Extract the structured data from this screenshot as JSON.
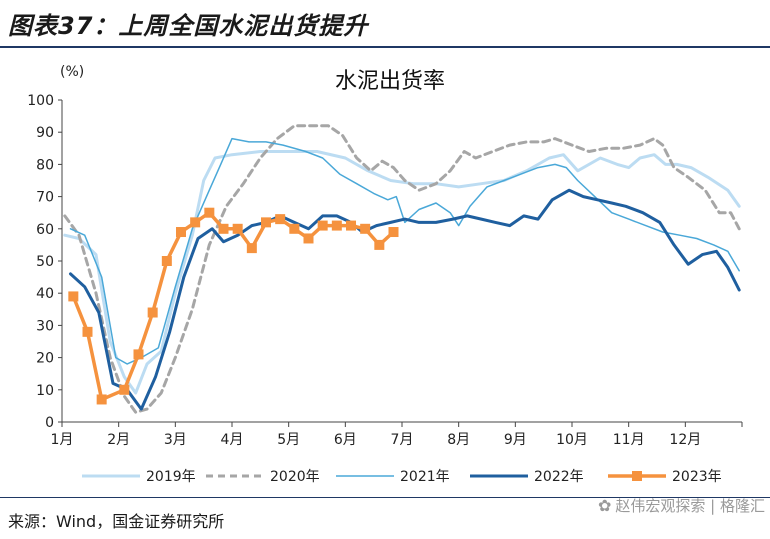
{
  "figure": {
    "title": "图表37：上周全国水泥出货提升",
    "source": "来源：Wind，国金证券研究所",
    "watermark": "赵伟宏观探索 | 格隆汇"
  },
  "chart_data": {
    "type": "line",
    "title": "水泥出货率",
    "unit": "(%)",
    "xlabel": "",
    "ylabel": "",
    "x_ticks": [
      "1月",
      "2月",
      "3月",
      "4月",
      "5月",
      "6月",
      "7月",
      "8月",
      "9月",
      "10月",
      "11月",
      "12月"
    ],
    "xlim": [
      1,
      13
    ],
    "ylim": [
      0,
      100
    ],
    "y_ticks": [
      0,
      10,
      20,
      30,
      40,
      50,
      60,
      70,
      80,
      90,
      100
    ],
    "grid": false,
    "legend_position": "bottom",
    "series": [
      {
        "name": "2019年",
        "color": "#bcdcf2",
        "style": "solid",
        "width": 3,
        "marker": "none",
        "points": [
          [
            1.05,
            58
          ],
          [
            1.3,
            57
          ],
          [
            1.6,
            52
          ],
          [
            1.85,
            25
          ],
          [
            2.1,
            14
          ],
          [
            2.3,
            9
          ],
          [
            2.5,
            18
          ],
          [
            2.75,
            22
          ],
          [
            3.0,
            40
          ],
          [
            3.3,
            58
          ],
          [
            3.5,
            75
          ],
          [
            3.7,
            82
          ],
          [
            4.0,
            83
          ],
          [
            4.5,
            84
          ],
          [
            5.0,
            84
          ],
          [
            5.5,
            84
          ],
          [
            6.0,
            82
          ],
          [
            6.4,
            78
          ],
          [
            6.8,
            75
          ],
          [
            7.2,
            74
          ],
          [
            7.6,
            74
          ],
          [
            8.0,
            73
          ],
          [
            8.4,
            74
          ],
          [
            8.8,
            75
          ],
          [
            9.2,
            78
          ],
          [
            9.6,
            82
          ],
          [
            9.85,
            83
          ],
          [
            10.1,
            78
          ],
          [
            10.5,
            82
          ],
          [
            10.8,
            80
          ],
          [
            11.0,
            79
          ],
          [
            11.2,
            82
          ],
          [
            11.45,
            83
          ],
          [
            11.65,
            80
          ],
          [
            11.85,
            80
          ],
          [
            12.1,
            79
          ],
          [
            12.4,
            76
          ],
          [
            12.75,
            72
          ],
          [
            12.95,
            67
          ]
        ]
      },
      {
        "name": "2020年",
        "color": "#a6a6a6",
        "style": "dashed",
        "width": 3,
        "marker": "none",
        "points": [
          [
            1.05,
            64
          ],
          [
            1.3,
            58
          ],
          [
            1.6,
            40
          ],
          [
            1.85,
            20
          ],
          [
            2.1,
            8
          ],
          [
            2.3,
            3
          ],
          [
            2.5,
            4
          ],
          [
            2.75,
            9
          ],
          [
            3.0,
            20
          ],
          [
            3.3,
            35
          ],
          [
            3.6,
            55
          ],
          [
            3.9,
            67
          ],
          [
            4.2,
            74
          ],
          [
            4.5,
            82
          ],
          [
            4.8,
            88
          ],
          [
            5.1,
            92
          ],
          [
            5.4,
            92
          ],
          [
            5.7,
            92
          ],
          [
            5.95,
            89
          ],
          [
            6.2,
            82
          ],
          [
            6.45,
            78
          ],
          [
            6.65,
            81
          ],
          [
            6.85,
            79
          ],
          [
            7.05,
            75
          ],
          [
            7.3,
            72
          ],
          [
            7.6,
            74
          ],
          [
            7.85,
            78
          ],
          [
            8.1,
            84
          ],
          [
            8.3,
            82
          ],
          [
            8.6,
            84
          ],
          [
            8.9,
            86
          ],
          [
            9.2,
            87
          ],
          [
            9.5,
            87
          ],
          [
            9.7,
            88
          ],
          [
            10.0,
            86
          ],
          [
            10.3,
            84
          ],
          [
            10.6,
            85
          ],
          [
            10.9,
            85
          ],
          [
            11.2,
            86
          ],
          [
            11.45,
            88
          ],
          [
            11.6,
            86
          ],
          [
            11.8,
            79
          ],
          [
            12.05,
            76
          ],
          [
            12.35,
            72
          ],
          [
            12.6,
            65
          ],
          [
            12.8,
            65
          ],
          [
            12.95,
            60
          ]
        ]
      },
      {
        "name": "2021年",
        "color": "#4aa8d8",
        "style": "solid",
        "width": 1.5,
        "marker": "none",
        "points": [
          [
            1.15,
            60
          ],
          [
            1.4,
            58
          ],
          [
            1.7,
            45
          ],
          [
            1.95,
            20
          ],
          [
            2.15,
            18
          ],
          [
            2.4,
            20
          ],
          [
            2.7,
            23
          ],
          [
            3.0,
            42
          ],
          [
            3.3,
            60
          ],
          [
            3.6,
            72
          ],
          [
            3.8,
            80
          ],
          [
            4.0,
            88
          ],
          [
            4.3,
            87
          ],
          [
            4.6,
            87
          ],
          [
            4.9,
            86
          ],
          [
            5.3,
            84
          ],
          [
            5.6,
            82
          ],
          [
            5.9,
            77
          ],
          [
            6.2,
            74
          ],
          [
            6.5,
            71
          ],
          [
            6.75,
            69
          ],
          [
            6.9,
            70
          ],
          [
            7.05,
            62
          ],
          [
            7.3,
            66
          ],
          [
            7.6,
            68
          ],
          [
            7.85,
            65
          ],
          [
            8.0,
            61
          ],
          [
            8.2,
            67
          ],
          [
            8.5,
            73
          ],
          [
            8.8,
            75
          ],
          [
            9.1,
            77
          ],
          [
            9.4,
            79
          ],
          [
            9.7,
            80
          ],
          [
            9.9,
            79
          ],
          [
            10.1,
            75
          ],
          [
            10.4,
            70
          ],
          [
            10.7,
            65
          ],
          [
            11.0,
            63
          ],
          [
            11.3,
            61
          ],
          [
            11.6,
            59
          ],
          [
            11.9,
            58
          ],
          [
            12.2,
            57
          ],
          [
            12.5,
            55
          ],
          [
            12.75,
            53
          ],
          [
            12.95,
            47
          ]
        ]
      },
      {
        "name": "2022年",
        "color": "#1f5f9f",
        "style": "solid",
        "width": 3,
        "marker": "none",
        "points": [
          [
            1.15,
            46
          ],
          [
            1.4,
            42
          ],
          [
            1.65,
            34
          ],
          [
            1.9,
            12
          ],
          [
            2.15,
            10
          ],
          [
            2.4,
            4
          ],
          [
            2.65,
            14
          ],
          [
            2.9,
            28
          ],
          [
            3.15,
            45
          ],
          [
            3.4,
            57
          ],
          [
            3.65,
            60
          ],
          [
            3.85,
            56
          ],
          [
            4.1,
            58
          ],
          [
            4.35,
            61
          ],
          [
            4.6,
            62
          ],
          [
            4.85,
            64
          ],
          [
            5.1,
            62
          ],
          [
            5.35,
            60
          ],
          [
            5.6,
            64
          ],
          [
            5.85,
            64
          ],
          [
            6.1,
            62
          ],
          [
            6.3,
            59
          ],
          [
            6.55,
            61
          ],
          [
            6.8,
            62
          ],
          [
            7.05,
            63
          ],
          [
            7.3,
            62
          ],
          [
            7.6,
            62
          ],
          [
            7.9,
            63
          ],
          [
            8.15,
            64
          ],
          [
            8.4,
            63
          ],
          [
            8.65,
            62
          ],
          [
            8.9,
            61
          ],
          [
            9.15,
            64
          ],
          [
            9.4,
            63
          ],
          [
            9.65,
            69
          ],
          [
            9.95,
            72
          ],
          [
            10.2,
            70
          ],
          [
            10.45,
            69
          ],
          [
            10.7,
            68
          ],
          [
            10.95,
            67
          ],
          [
            11.25,
            65
          ],
          [
            11.55,
            62
          ],
          [
            11.8,
            55
          ],
          [
            12.05,
            49
          ],
          [
            12.3,
            52
          ],
          [
            12.55,
            53
          ],
          [
            12.75,
            48
          ],
          [
            12.95,
            41
          ]
        ]
      },
      {
        "name": "2023年",
        "color": "#f5923e",
        "style": "solid",
        "width": 3.5,
        "marker": "square",
        "points": [
          [
            1.2,
            39
          ],
          [
            1.45,
            28
          ],
          [
            1.7,
            7
          ],
          [
            2.1,
            10
          ],
          [
            2.35,
            21
          ],
          [
            2.6,
            34
          ],
          [
            2.85,
            50
          ],
          [
            3.1,
            59
          ],
          [
            3.35,
            62
          ],
          [
            3.6,
            65
          ],
          [
            3.85,
            60
          ],
          [
            4.1,
            60
          ],
          [
            4.35,
            54
          ],
          [
            4.6,
            62
          ],
          [
            4.85,
            63
          ],
          [
            5.1,
            60
          ],
          [
            5.35,
            57
          ],
          [
            5.6,
            61
          ],
          [
            5.85,
            61
          ],
          [
            6.1,
            61
          ],
          [
            6.35,
            60
          ],
          [
            6.6,
            55
          ],
          [
            6.85,
            59
          ]
        ]
      }
    ]
  }
}
